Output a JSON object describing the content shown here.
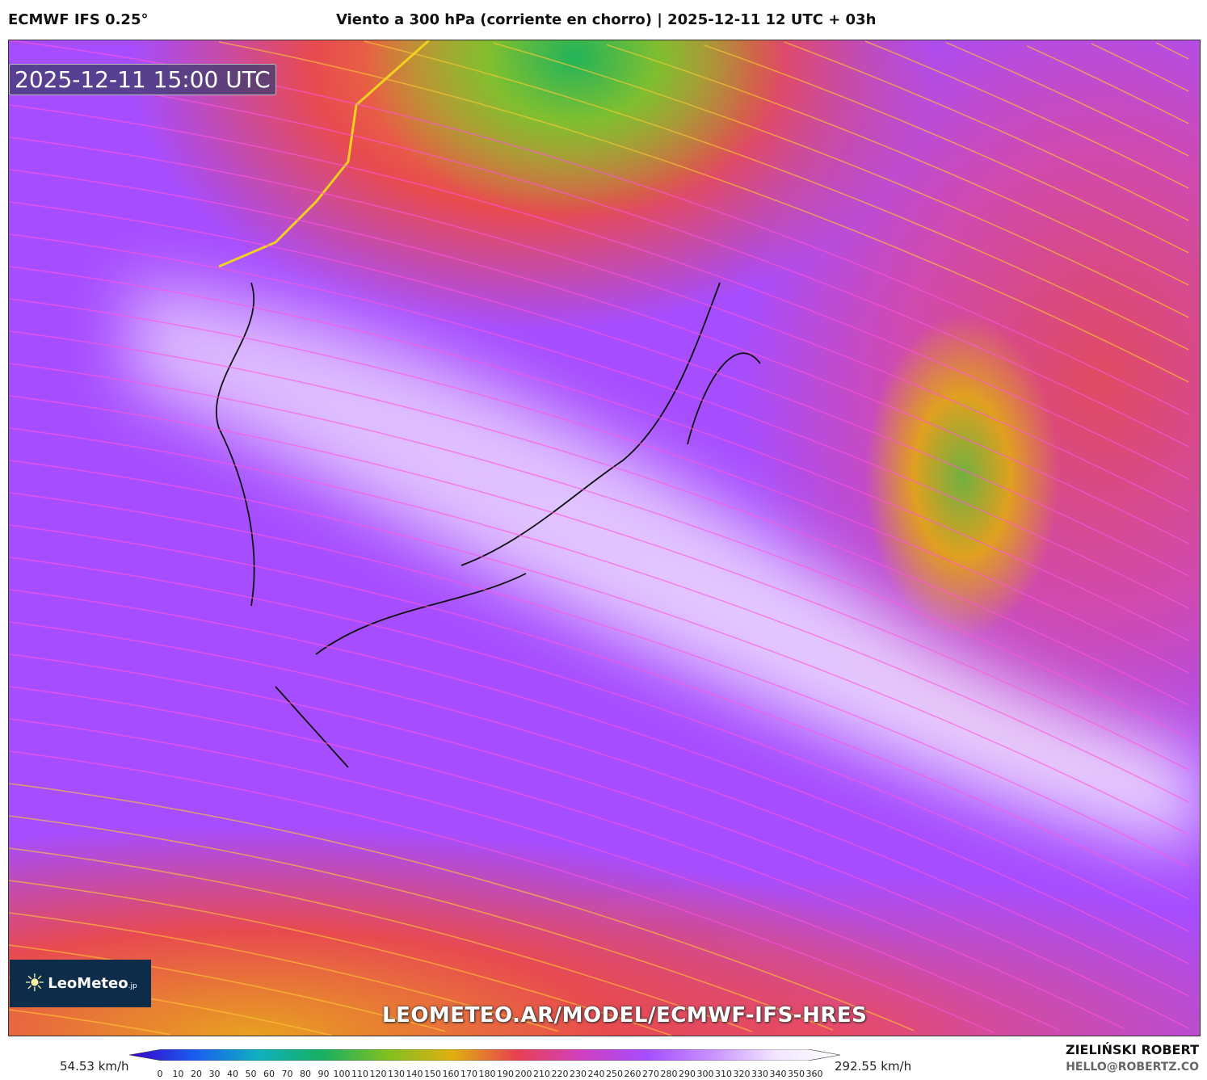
{
  "header": {
    "model": "ECMWF IFS 0.25°",
    "title": "Viento a 300 hPa (corriente en chorro) | 2025-12-11 12 UTC + 03h"
  },
  "map": {
    "valid_time": "2025-12-11 15:00 UTC",
    "logo_text": "LeoMeteo",
    "logo_suffix": ".jp",
    "watermark_url": "LEOMETEO.AR/MODEL/ECMWF-IFS-HRES",
    "icons": [
      "sun-logo-icon",
      "streamline-arrows"
    ]
  },
  "colorbar": {
    "min_label": "54.53 km/h",
    "max_label": "292.55 km/h",
    "ticks": [
      "0",
      "10",
      "20",
      "30",
      "40",
      "50",
      "60",
      "70",
      "80",
      "90",
      "100",
      "110",
      "120",
      "130",
      "140",
      "150",
      "160",
      "170",
      "180",
      "190",
      "200",
      "210",
      "220",
      "230",
      "240",
      "250",
      "260",
      "270",
      "280",
      "290",
      "300",
      "310",
      "320",
      "330",
      "340",
      "350",
      "360"
    ],
    "colors": [
      "#3a00c8",
      "#1a5cf0",
      "#10b0c0",
      "#18b060",
      "#80c020",
      "#e0b010",
      "#e84050",
      "#d040c0",
      "#a64dff",
      "#c890ff",
      "#f2e6ff",
      "#ffffff"
    ]
  },
  "credit": {
    "name": "ZIELIŃSKI ROBERT",
    "email": "HELLO@ROBERTZ.CO"
  }
}
